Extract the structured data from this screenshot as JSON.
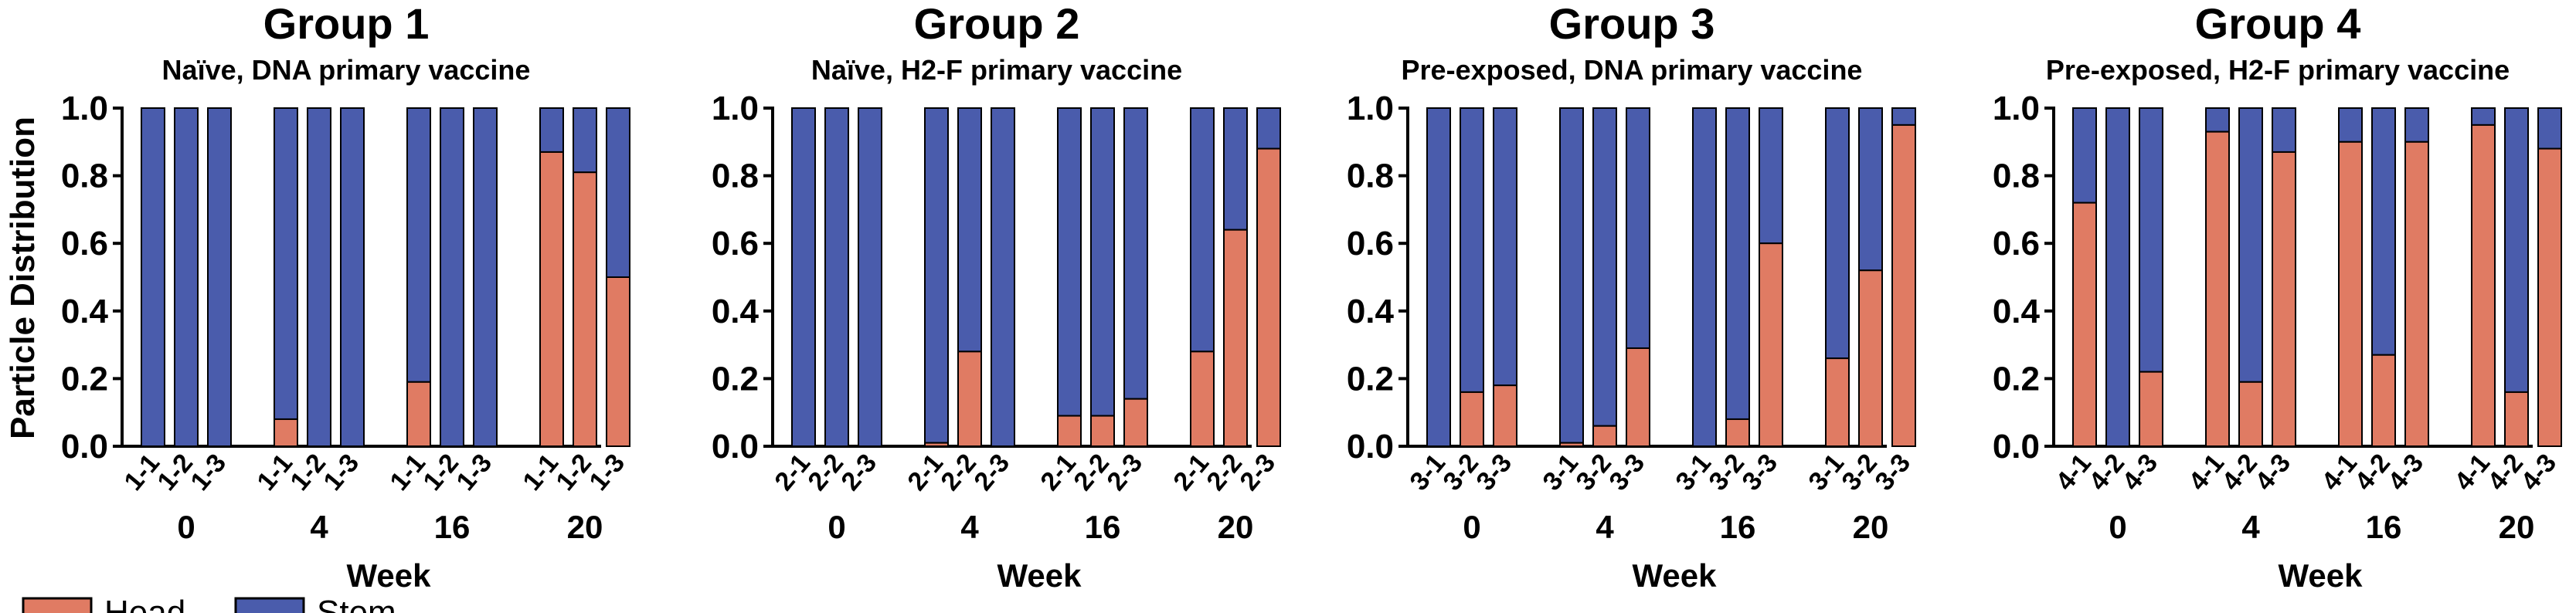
{
  "colors": {
    "head": "#E07B63",
    "stem": "#4A5CAC",
    "axis": "#000000"
  },
  "ylabel": "Particle Distribution",
  "legend": [
    {
      "label": "Head",
      "color": "#E07B63"
    },
    {
      "label": "Stem",
      "color": "#4A5CAC"
    }
  ],
  "chart_data": [
    {
      "type": "bar",
      "stacked": true,
      "title": "Group 1",
      "subtitle": "Naïve, DNA primary vaccine",
      "xlabel": "Week",
      "ylim": [
        0,
        1.0
      ],
      "yticks": [
        "0.0",
        "0.2",
        "0.4",
        "0.6",
        "0.8",
        "1.0"
      ],
      "groups": [
        {
          "week": "0",
          "bars": [
            {
              "label": "1-1",
              "head": 0.0
            },
            {
              "label": "1-2",
              "head": 0.0
            },
            {
              "label": "1-3",
              "head": 0.0
            }
          ]
        },
        {
          "week": "4",
          "bars": [
            {
              "label": "1-1",
              "head": 0.08
            },
            {
              "label": "1-2",
              "head": 0.0
            },
            {
              "label": "1-3",
              "head": 0.0
            }
          ]
        },
        {
          "week": "16",
          "bars": [
            {
              "label": "1-1",
              "head": 0.19
            },
            {
              "label": "1-2",
              "head": 0.0
            },
            {
              "label": "1-3",
              "head": 0.0
            }
          ]
        },
        {
          "week": "20",
          "bars": [
            {
              "label": "1-1",
              "head": 0.87
            },
            {
              "label": "1-2",
              "head": 0.81
            },
            {
              "label": "1-3",
              "head": 0.5
            }
          ]
        }
      ]
    },
    {
      "type": "bar",
      "stacked": true,
      "title": "Group 2",
      "subtitle": "Naïve, H2-F primary vaccine",
      "xlabel": "Week",
      "ylim": [
        0,
        1.0
      ],
      "yticks": [
        "0.0",
        "0.2",
        "0.4",
        "0.6",
        "0.8",
        "1.0"
      ],
      "groups": [
        {
          "week": "0",
          "bars": [
            {
              "label": "2-1",
              "head": 0.0
            },
            {
              "label": "2-2",
              "head": 0.0
            },
            {
              "label": "2-3",
              "head": 0.0
            }
          ]
        },
        {
          "week": "4",
          "bars": [
            {
              "label": "2-1",
              "head": 0.01
            },
            {
              "label": "2-2",
              "head": 0.28
            },
            {
              "label": "2-3",
              "head": 0.0
            }
          ]
        },
        {
          "week": "16",
          "bars": [
            {
              "label": "2-1",
              "head": 0.09
            },
            {
              "label": "2-2",
              "head": 0.09
            },
            {
              "label": "2-3",
              "head": 0.14
            }
          ]
        },
        {
          "week": "20",
          "bars": [
            {
              "label": "2-1",
              "head": 0.28
            },
            {
              "label": "2-2",
              "head": 0.64
            },
            {
              "label": "2-3",
              "head": 0.88
            }
          ]
        }
      ]
    },
    {
      "type": "bar",
      "stacked": true,
      "title": "Group 3",
      "subtitle": "Pre-exposed, DNA primary vaccine",
      "xlabel": "Week",
      "ylim": [
        0,
        1.0
      ],
      "yticks": [
        "0.0",
        "0.2",
        "0.4",
        "0.6",
        "0.8",
        "1.0"
      ],
      "groups": [
        {
          "week": "0",
          "bars": [
            {
              "label": "3-1",
              "head": 0.0
            },
            {
              "label": "3-2",
              "head": 0.16
            },
            {
              "label": "3-3",
              "head": 0.18
            }
          ]
        },
        {
          "week": "4",
          "bars": [
            {
              "label": "3-1",
              "head": 0.01
            },
            {
              "label": "3-2",
              "head": 0.06
            },
            {
              "label": "3-3",
              "head": 0.29
            }
          ]
        },
        {
          "week": "16",
          "bars": [
            {
              "label": "3-1",
              "head": 0.0
            },
            {
              "label": "3-2",
              "head": 0.08
            },
            {
              "label": "3-3",
              "head": 0.6
            }
          ]
        },
        {
          "week": "20",
          "bars": [
            {
              "label": "3-1",
              "head": 0.26
            },
            {
              "label": "3-2",
              "head": 0.52
            },
            {
              "label": "3-3",
              "head": 0.95
            }
          ]
        }
      ]
    },
    {
      "type": "bar",
      "stacked": true,
      "title": "Group 4",
      "subtitle": "Pre-exposed, H2-F primary vaccine",
      "xlabel": "Week",
      "ylim": [
        0,
        1.0
      ],
      "yticks": [
        "0.0",
        "0.2",
        "0.4",
        "0.6",
        "0.8",
        "1.0"
      ],
      "groups": [
        {
          "week": "0",
          "bars": [
            {
              "label": "4-1",
              "head": 0.72
            },
            {
              "label": "4-2",
              "head": 0.0
            },
            {
              "label": "4-3",
              "head": 0.22
            }
          ]
        },
        {
          "week": "4",
          "bars": [
            {
              "label": "4-1",
              "head": 0.93
            },
            {
              "label": "4-2",
              "head": 0.19
            },
            {
              "label": "4-3",
              "head": 0.87
            }
          ]
        },
        {
          "week": "16",
          "bars": [
            {
              "label": "4-1",
              "head": 0.9
            },
            {
              "label": "4-2",
              "head": 0.27
            },
            {
              "label": "4-3",
              "head": 0.9
            }
          ]
        },
        {
          "week": "20",
          "bars": [
            {
              "label": "4-1",
              "head": 0.95
            },
            {
              "label": "4-2",
              "head": 0.16
            },
            {
              "label": "4-3",
              "head": 0.88
            }
          ]
        }
      ]
    }
  ]
}
